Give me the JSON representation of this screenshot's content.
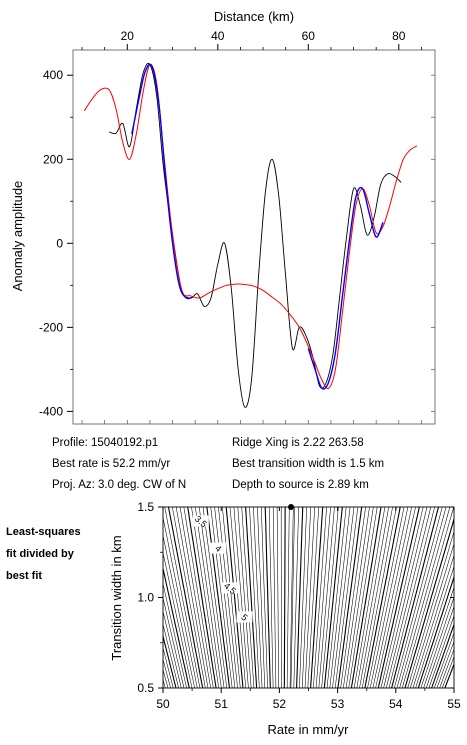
{
  "colors": {
    "observed": "#000000",
    "fit": "#0000ff",
    "model": "#ff0000",
    "contour": "#000000"
  },
  "chart_data": [
    {
      "type": "line",
      "xlabel": "Distance (km)",
      "ylabel": "Anomaly amplitude",
      "xlim": [
        8,
        88
      ],
      "ylim": [
        -430,
        460
      ],
      "x_ticks": [
        20,
        40,
        60,
        80
      ],
      "y_ticks": [
        400,
        200,
        0,
        -200,
        -400
      ],
      "x_tick_labels": [
        "20",
        "40",
        "60",
        "80"
      ],
      "y_tick_labels": [
        "400",
        "200",
        "0",
        "-200",
        "-400"
      ],
      "grid": false,
      "series": [
        {
          "color": "#000000",
          "x": [
            16,
            17.5,
            19,
            20.5,
            22,
            23.5,
            25,
            26.5,
            28,
            30,
            32,
            34,
            35.5,
            37,
            38.5,
            40,
            41.5,
            43,
            44.5,
            46,
            47.5,
            49,
            50.5,
            52,
            53.5,
            55,
            56.5,
            58,
            59.5,
            61,
            62.5,
            64,
            65.5,
            67,
            68.5,
            70,
            71.5,
            73,
            74.5,
            76,
            77.5,
            79,
            80.5
          ],
          "y": [
            265,
            262,
            285,
            230,
            320,
            405,
            425,
            350,
            180,
            20,
            -110,
            -130,
            -120,
            -150,
            -130,
            -50,
            0,
            -110,
            -300,
            -390,
            -320,
            -80,
            120,
            200,
            110,
            -80,
            -250,
            -200,
            -220,
            -270,
            -340,
            -330,
            -260,
            -120,
            20,
            130,
            90,
            20,
            60,
            140,
            165,
            160,
            145
          ]
        },
        {
          "color": "#0000ff",
          "x": [
            21,
            22.5,
            24,
            25.5,
            27,
            28.5,
            30,
            31.5,
            33,
            34.5,
            60,
            61.5,
            63,
            64.5,
            66,
            67.5,
            69,
            70.5,
            72,
            73.5,
            75,
            76.5
          ],
          "y": [
            260,
            340,
            410,
            420,
            330,
            150,
            0,
            -100,
            -130,
            -128,
            -250,
            -300,
            -345,
            -330,
            -260,
            -130,
            0,
            110,
            130,
            70,
            15,
            50
          ]
        },
        {
          "color": "#ff0000",
          "x": [
            10.5,
            12,
            14,
            16,
            17.5,
            19,
            20.5,
            22,
            23.5,
            25,
            26.5,
            28,
            30,
            32,
            34,
            36,
            38,
            40,
            42,
            44,
            46,
            48,
            50,
            52,
            54,
            56,
            58,
            60,
            61.5,
            63,
            64.5,
            66,
            67.5,
            69,
            70.5,
            72,
            73.5,
            75,
            76.5,
            78,
            79.5,
            81,
            82.5,
            84
          ],
          "y": [
            315,
            340,
            365,
            365,
            320,
            240,
            200,
            260,
            360,
            425,
            380,
            220,
            20,
            -110,
            -125,
            -130,
            -118,
            -108,
            -100,
            -97,
            -98,
            -102,
            -112,
            -128,
            -145,
            -170,
            -200,
            -245,
            -285,
            -325,
            -345,
            -300,
            -170,
            -30,
            90,
            130,
            90,
            25,
            40,
            90,
            150,
            200,
            222,
            232
          ]
        }
      ]
    },
    {
      "type": "contour",
      "xlabel": "Rate in mm/yr",
      "ylabel": "Transition width in km",
      "xlim": [
        50,
        55
      ],
      "ylim": [
        0.5,
        1.5
      ],
      "x_ticks": [
        50,
        51,
        52,
        53,
        54,
        55
      ],
      "y_ticks": [
        0.5,
        1.0,
        1.5
      ],
      "x_tick_labels": [
        "50",
        "51",
        "52",
        "53",
        "54",
        "55"
      ],
      "y_tick_labels": [
        "0.5",
        "1.0",
        "1.5"
      ],
      "best_fit": {
        "rate": 52.2,
        "width": 1.5
      },
      "contour_labels": [
        {
          "text": "3.5",
          "rate": 50.65,
          "width": 1.42
        },
        {
          "text": "4",
          "rate": 50.95,
          "width": 1.27
        },
        {
          "text": "4.5",
          "rate": 51.15,
          "width": 1.05
        },
        {
          "text": "5",
          "rate": 51.4,
          "width": 0.89
        }
      ]
    }
  ],
  "info": {
    "profile": "Profile: 15040192.p1",
    "best_rate": "Best rate is 52.2 mm/yr",
    "proj_az": "Proj. Az: 3.0 deg. CW of N",
    "ridge_xing": "Ridge Xing is 2.22 263.58",
    "best_width": "Best transition width is 1.5 km",
    "depth": "Depth to source is    2.89 km"
  },
  "side_label": [
    "Least-squares",
    "fit divided by",
    "best fit"
  ]
}
